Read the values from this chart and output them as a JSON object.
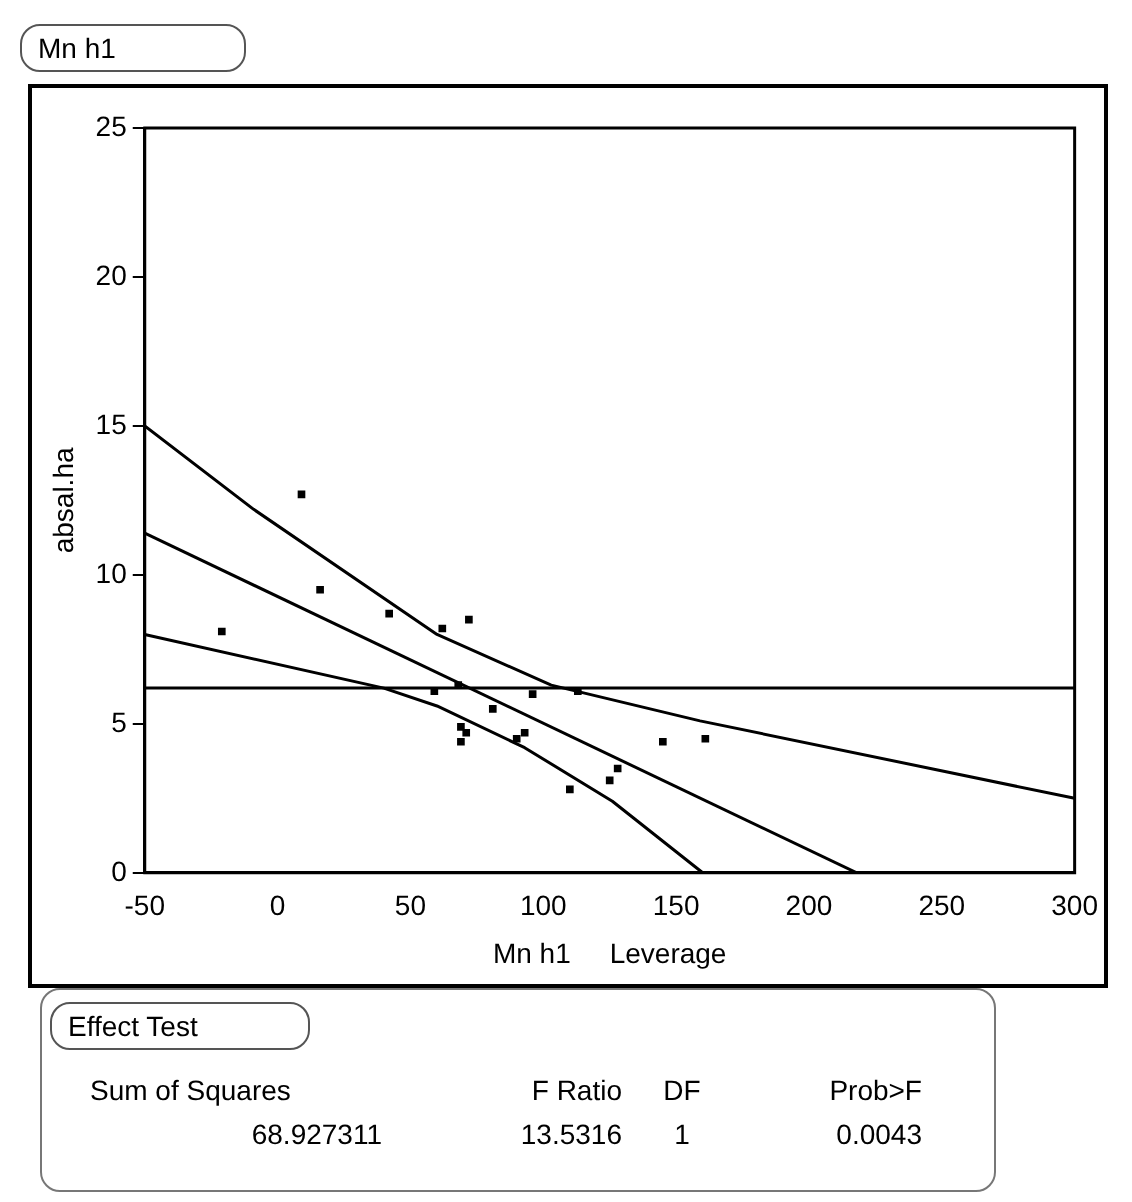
{
  "chart_data": {
    "type": "scatter",
    "title": "Mn h1",
    "xlabel": "Mn h1     Leverage",
    "ylabel": "absal.ha",
    "xlim": [
      -50,
      300
    ],
    "xticks": [
      -50,
      0,
      50,
      100,
      150,
      200,
      250,
      300
    ],
    "ylim": [
      0,
      25
    ],
    "yticks": [
      0,
      5,
      10,
      15,
      20,
      25
    ],
    "grid": false,
    "legend": false,
    "series": [
      {
        "marker": "square",
        "color": "#000000",
        "x": [
          -21,
          9,
          16,
          42,
          62,
          72,
          59,
          68,
          81,
          96,
          113,
          69,
          71,
          69,
          90,
          93,
          110,
          125,
          128,
          145,
          161
        ],
        "values": [
          8.1,
          12.7,
          9.5,
          8.7,
          8.2,
          8.5,
          6.1,
          6.3,
          5.5,
          6.0,
          6.1,
          4.9,
          4.7,
          4.4,
          4.5,
          4.7,
          2.8,
          3.1,
          3.5,
          4.4,
          4.5
        ]
      },
      {
        "type": "line",
        "marker": "none",
        "color": "#000000",
        "x": [
          -50,
          218
        ],
        "values": [
          11.4,
          0
        ]
      },
      {
        "type": "line",
        "marker": "none",
        "color": "#000000",
        "x": [
          -50,
          -9,
          60,
          103,
          159,
          300
        ],
        "values": [
          15.0,
          12.2,
          8.0,
          6.3,
          5.1,
          2.5
        ]
      },
      {
        "type": "line",
        "marker": "none",
        "color": "#000000",
        "x": [
          -50,
          40,
          60,
          93,
          126,
          160
        ],
        "values": [
          8.0,
          6.2,
          5.6,
          4.2,
          2.4,
          0
        ]
      }
    ],
    "ref_lines": [
      {
        "axis": "y",
        "value": 6.2,
        "color": "#000000"
      }
    ],
    "annotations": [
      "Effect Test",
      "Sum of Squares",
      "F Ratio",
      "DF",
      "Prob>F",
      "68.927311",
      "13.5316",
      "1",
      "0.0043"
    ]
  }
}
